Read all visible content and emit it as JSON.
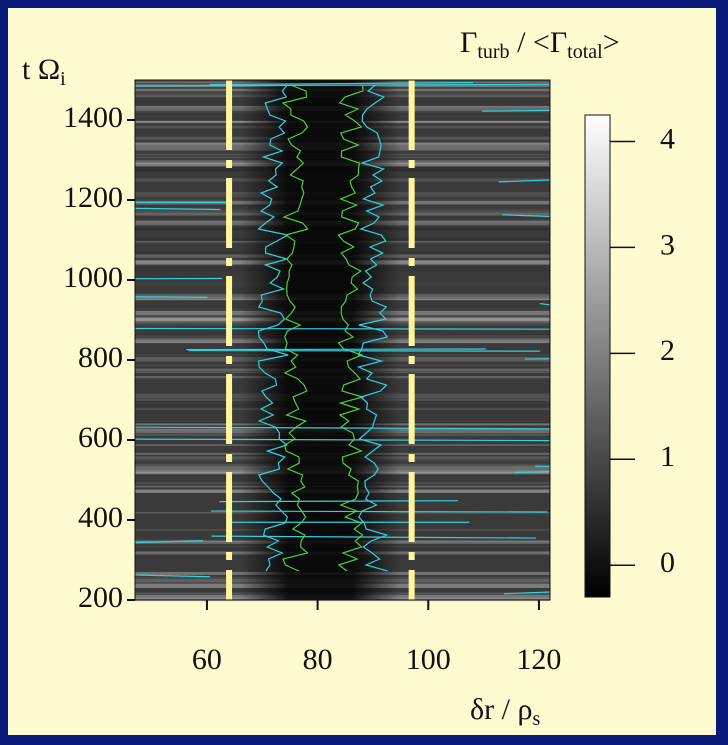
{
  "chart_data": {
    "type": "heatmap",
    "x_label": [
      "δr / ρ",
      "s"
    ],
    "y_label": [
      "t Ω",
      "i"
    ],
    "colorbar_label": [
      "Γ",
      "turb",
      " / <Γ",
      "total",
      ">"
    ],
    "xlim": [
      47,
      122
    ],
    "xticks": [
      60,
      80,
      100,
      120
    ],
    "ylim": [
      200,
      1500
    ],
    "yticks": [
      200,
      400,
      600,
      800,
      1000,
      1200,
      1400
    ],
    "clim": [
      -0.3,
      4.25
    ],
    "cticks": [
      0,
      1,
      2,
      3,
      4
    ],
    "vlines": [
      64,
      97
    ],
    "vline_color": "#fff59a"
  }
}
